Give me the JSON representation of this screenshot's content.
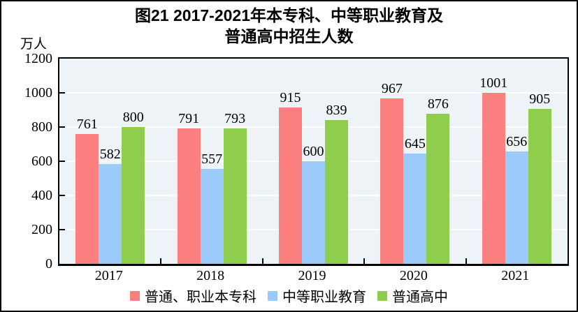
{
  "title": {
    "line1": "图21  2017-2021年本专科、中等职业教育及",
    "line2": "普通高中招生人数"
  },
  "chart_data": {
    "type": "bar",
    "title": "图21 2017-2021年本专科、中等职业教育及普通高中招生人数",
    "unit_label": "万人",
    "xlabel": "",
    "ylabel": "万人",
    "categories": [
      "2017",
      "2018",
      "2019",
      "2020",
      "2021"
    ],
    "series": [
      {
        "name": "普通、职业本专科",
        "color": "#FC8080",
        "values": [
          761,
          791,
          915,
          967,
          1001
        ]
      },
      {
        "name": "中等职业教育",
        "color": "#9ACBFB",
        "values": [
          582,
          557,
          600,
          645,
          656
        ]
      },
      {
        "name": "普通高中",
        "color": "#8FCE4D",
        "values": [
          800,
          793,
          839,
          876,
          905
        ]
      }
    ],
    "ylim": [
      0,
      1200
    ],
    "yticks": [
      0,
      200,
      400,
      600,
      800,
      1000,
      1200
    ],
    "grid": true,
    "gridline_color": "#FFFFFF",
    "plot_background": "#EDF3F7",
    "legend_position": "bottom"
  }
}
